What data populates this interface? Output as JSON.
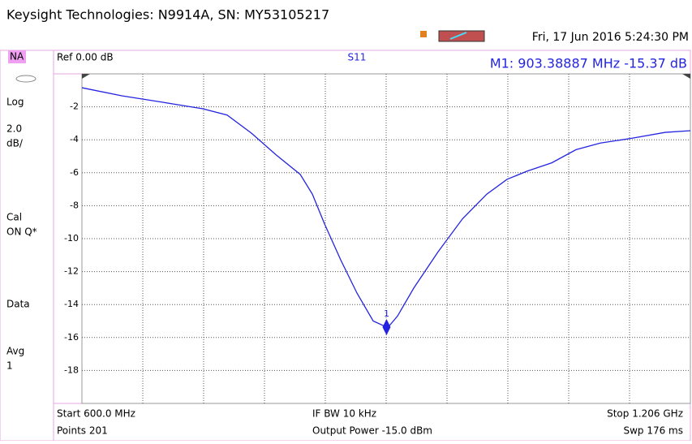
{
  "header": {
    "title": "Keysight Technologies: N9914A, SN: MY53105217",
    "datetime": "Fri, 17 Jun 2016 5:24:30 PM"
  },
  "sidebar": {
    "mode": "NA",
    "items": [
      "Log",
      "2.0",
      "dB/",
      "Cal",
      "ON Q*",
      "Data",
      "Avg",
      "1"
    ]
  },
  "plot_header": {
    "ref": "Ref 0.00 dB",
    "trace": "S11",
    "marker_readout": "M1:  903.38887 MHz -15.37 dB"
  },
  "footer": {
    "start": "Start 600.0 MHz",
    "points": "Points 201",
    "ifbw": "IF BW 10 kHz",
    "power": "Output Power -15.0 dBm",
    "stop": "Stop 1.206 GHz",
    "sweep": "Swp 176 ms"
  },
  "chart_data": {
    "type": "line",
    "x": [
      600,
      639.6,
      680,
      720.4,
      744.6,
      768.9,
      793.1,
      817.4,
      829.5,
      841.6,
      857.8,
      873.9,
      890.1,
      904.6,
      914.3,
      930.5,
      954.7,
      979,
      1003.2,
      1023.4,
      1043.6,
      1067.9,
      1092.1,
      1116.3,
      1148.6,
      1181,
      1206
    ],
    "series": [
      {
        "name": "S11",
        "color": "#2424e0",
        "values": [
          -0.84,
          -1.33,
          -1.72,
          -2.12,
          -2.5,
          -3.6,
          -4.9,
          -6.1,
          -7.3,
          -9.1,
          -11.3,
          -13.3,
          -15.0,
          -15.4,
          -14.7,
          -13.0,
          -10.8,
          -8.8,
          -7.3,
          -6.4,
          -5.9,
          -5.4,
          -4.6,
          -4.2,
          -3.9,
          -3.55,
          -3.45
        ]
      }
    ],
    "marker": {
      "label": "1",
      "x": 903.38887,
      "y": -15.37
    },
    "xlim": [
      600,
      1206
    ],
    "ylim": [
      -20,
      0
    ],
    "yticks": [
      -2,
      -4,
      -6,
      -8,
      -10,
      -12,
      -14,
      -16,
      -18
    ],
    "grid": true
  }
}
